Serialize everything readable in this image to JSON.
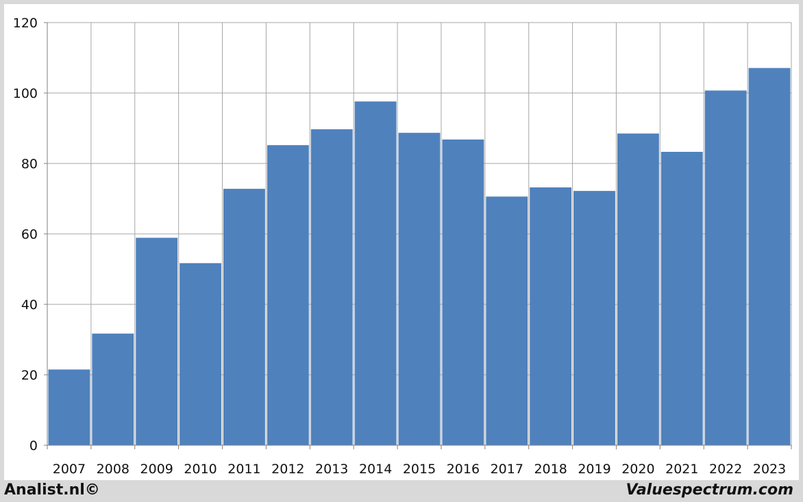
{
  "chart_data": {
    "type": "bar",
    "title": "",
    "xlabel": "",
    "ylabel": "",
    "categories": [
      "2007",
      "2008",
      "2009",
      "2010",
      "2011",
      "2012",
      "2013",
      "2014",
      "2015",
      "2016",
      "2017",
      "2018",
      "2019",
      "2020",
      "2021",
      "2022",
      "2023"
    ],
    "values": [
      21.5,
      31.7,
      58.9,
      51.7,
      72.8,
      85.2,
      89.7,
      97.6,
      88.7,
      86.8,
      70.6,
      73.2,
      72.2,
      88.5,
      83.3,
      100.7,
      107.1
    ],
    "ylim": [
      0,
      120
    ],
    "yticks": [
      0,
      20,
      40,
      60,
      80,
      100,
      120
    ],
    "grid": true,
    "bar_color": "#4f81bd",
    "grid_color": "#a6a6a6",
    "axis_color": "#808080"
  },
  "footer": {
    "left": "Analist.nl©",
    "right": "Valuespectrum.com"
  }
}
